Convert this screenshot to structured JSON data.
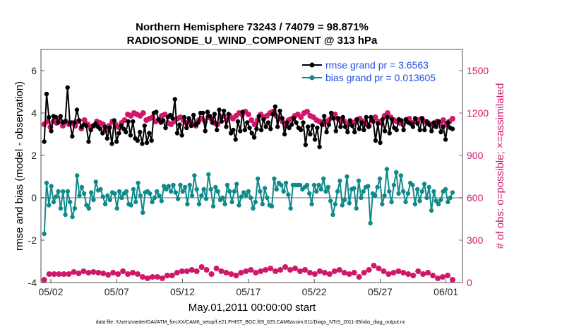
{
  "chart_data": {
    "type": "line",
    "title": "Northern Hemisphere 73243 / 74079 = 98.871%",
    "subtitle": "RADIOSONDE_U_WIND_COMPONENT @ 313 hPa",
    "xlabel": "May.01,2011 00:00:00 start",
    "ylabel_left": "rmse and bias (model - observation)",
    "ylabel_right": "# of obs: o=possible; ×=assimilated",
    "footer": "data file: /Users/raeder/DAI/ATM_forcXX/CAM6_setup/f.e21.FHIST_BGC.f09_025.CAM6assim.011/Diags_NTrS_2011-05/obs_diag_output.nc",
    "x_tick_labels": [
      "05/02",
      "05/07",
      "05/12",
      "05/17",
      "05/22",
      "05/27",
      "06/01"
    ],
    "x_tick_values": [
      1.5,
      6.5,
      11.5,
      16.5,
      21.5,
      26.5,
      31.5
    ],
    "xlim": [
      0.75,
      32.75
    ],
    "ylim_left": [
      -4,
      7
    ],
    "yticks_left": [
      "-4",
      "-2",
      "0",
      "2",
      "4",
      "6"
    ],
    "ylim_right": [
      0,
      1650
    ],
    "yticks_right": [
      "0",
      "300",
      "600",
      "900",
      "1200",
      "1500"
    ],
    "legend": {
      "placement": "top-right",
      "entries": [
        "rmse grand pr = 3.6563",
        "bias grand pr = 0.013605"
      ]
    },
    "colors": {
      "rmse": "#000000",
      "bias": "#0f8a8a",
      "obs": "#d0186a",
      "zero_line": "#b4b4b4",
      "legend_text": "#1f4fe0"
    },
    "series": [
      {
        "name": "rmse",
        "axis": "left",
        "values": [
          2.65,
          4.9,
          3.8,
          3.15,
          3.85,
          3.8,
          3.55,
          3.85,
          3.55,
          3.6,
          5.2,
          3.55,
          2.9,
          3.55,
          4.15,
          3.65,
          3.35,
          3.45,
          3.4,
          2.65,
          3.2,
          3.4,
          3.5,
          3.35,
          3.25,
          3.05,
          3.35,
          2.8,
          3.3,
          2.55,
          3.65,
          2.65,
          3.05,
          3.4,
          3.25,
          3.1,
          3.6,
          2.95,
          3.6,
          2.8,
          2.7,
          3.1,
          2.55,
          3.4,
          2.6,
          3.05,
          2.7,
          4.0,
          4.05,
          3.7,
          3.55,
          3.65,
          3.3,
          3.8,
          3.9,
          3.75,
          4.65,
          3.05,
          3.45,
          2.95,
          3.8,
          3.3,
          3.75,
          3.4,
          3.9,
          3.45,
          3.55,
          4.0,
          4.0,
          3.15,
          4.05,
          3.85,
          3.55,
          3.95,
          3.2,
          4.15,
          3.6,
          4.1,
          3.35,
          3.95,
          3.05,
          3.2,
          2.75,
          3.6,
          3.15,
          4.05,
          3.2,
          3.55,
          3.3,
          3.05,
          2.85,
          3.25,
          3.85,
          3.2,
          3.7,
          3.35,
          3.55,
          3.25,
          3.95,
          4.3,
          3.35,
          4.1,
          3.75,
          3.0,
          3.55,
          3.3,
          3.45,
          3.75,
          3.55,
          3.3,
          3.2,
          3.55,
          2.5,
          3.35,
          3.0,
          3.4,
          2.75,
          3.3,
          2.4,
          3.45,
          3.85,
          3.1,
          3.45,
          4.0,
          3.75,
          3.15,
          3.75,
          3.35,
          3.8,
          3.35,
          3.1,
          3.65,
          3.4,
          3.1,
          3.7,
          3.25,
          3.55,
          3.2,
          3.8,
          3.35,
          3.8,
          3.6,
          2.7,
          3.5,
          2.6,
          3.7,
          3.15,
          3.8,
          3.05,
          3.7,
          3.3,
          3.2,
          3.7,
          3.65,
          3.2,
          3.7,
          3.55,
          3.5,
          3.35,
          3.75,
          3.5,
          3.2,
          3.75,
          3.2,
          3.6,
          3.45,
          3.15,
          3.55,
          3.35,
          3.6,
          3.1,
          3.35,
          2.75,
          3.55,
          3.3,
          3.25
        ]
      },
      {
        "name": "bias",
        "axis": "left",
        "values": [
          -1.7,
          0.7,
          -0.35,
          0.55,
          -0.2,
          0.05,
          0.3,
          -0.5,
          0.3,
          -0.8,
          0.3,
          -0.2,
          -0.9,
          -0.5,
          1.05,
          0.1,
          0.5,
          0.2,
          -0.35,
          -0.5,
          0.25,
          -0.1,
          0.75,
          0.35,
          0.4,
          0.05,
          -0.3,
          0.1,
          -0.1,
          0.25,
          0.2,
          -0.5,
          0.3,
          0.0,
          0.2,
          0.3,
          -0.3,
          -0.35,
          0.4,
          -0.2,
          0.7,
          0.1,
          -0.7,
          0.25,
          0.3,
          0.2,
          -0.2,
          0.0,
          0.3,
          0.1,
          -0.15,
          0.55,
          0.4,
          0.55,
          0.3,
          0.6,
          0.25,
          -0.05,
          0.6,
          0.3,
          0.5,
          -0.3,
          0.6,
          0.1,
          1.05,
          0.4,
          -0.3,
          0.1,
          0.4,
          -0.05,
          1.1,
          0.4,
          -0.4,
          0.5,
          0.3,
          -0.1,
          0.0,
          -0.3,
          0.6,
          0.3,
          -0.2,
          0.3,
          0.65,
          -0.35,
          0.05,
          0.25,
          0.1,
          0.3,
          0.0,
          -0.5,
          -0.2,
          0.9,
          0.3,
          -0.3,
          0.45,
          0.0,
          -0.35,
          -0.4,
          0.9,
          0.4,
          0.7,
          0.6,
          0.3,
          0.7,
          0.15,
          -0.5,
          0.6,
          0.6,
          0.6,
          0.6,
          0.4,
          0.5,
          0.6,
          0.2,
          -0.3,
          0.6,
          0.3,
          0.6,
          0.4,
          0.9,
          0.3,
          0.5,
          -0.15,
          -0.8,
          -0.3,
          0.3,
          0.8,
          -0.35,
          -0.1,
          1.0,
          -0.25,
          0.4,
          0.45,
          -0.5,
          0.8,
          0.0,
          0.3,
          0.5,
          0.55,
          -1.2,
          0.2,
          0.1,
          0.5,
          0.9,
          -0.3,
          0.1,
          1.35,
          0.3,
          -0.2,
          0.6,
          1.2,
          0.2,
          1.05,
          0.3,
          -0.2,
          0.2,
          0.7,
          0.6,
          -0.3,
          0.4,
          -0.15,
          0.3,
          0.65,
          0.0,
          0.5,
          -0.6,
          0.3,
          -0.15,
          -0.3,
          -0.1,
          0.3,
          0.4,
          -0.2,
          0.0,
          0.25
        ]
      },
      {
        "name": "obs_assimilated",
        "axis": "right",
        "values": [
          20,
          60,
          60,
          60,
          60,
          60,
          75,
          65,
          80,
          70,
          75,
          70,
          65,
          55,
          70,
          60,
          80,
          60,
          70,
          60,
          40,
          30,
          40,
          40,
          30,
          50,
          50,
          70,
          80,
          80,
          90,
          80,
          110,
          90,
          60,
          100,
          80,
          70,
          60,
          50,
          70,
          80,
          90,
          70,
          80,
          90,
          100,
          80,
          90,
          110,
          90,
          100,
          80,
          90,
          70,
          60,
          80,
          70,
          60,
          80,
          90,
          70,
          60,
          70,
          40,
          70,
          90,
          120,
          100,
          80,
          60,
          70,
          80,
          70,
          60,
          50,
          80,
          60,
          70,
          50,
          30,
          40,
          50,
          20
        ],
        "note": "lower (observation count) series"
      },
      {
        "name": "obs_possible_top",
        "axis": "right",
        "values": [
          1120,
          1140,
          1100,
          1140,
          1130,
          1150,
          1110,
          1140,
          1120,
          1130,
          1110,
          1140,
          1090,
          1150,
          1120,
          1100,
          1110,
          1140,
          1130,
          1120,
          1080,
          1110,
          1140,
          1120,
          1100,
          1130,
          1150,
          1190,
          1180,
          1200,
          1190,
          1180,
          1200,
          1150,
          1160,
          1170,
          1140,
          1150,
          1180,
          1190,
          1130,
          1120,
          1140,
          1160,
          1170,
          1150,
          1130,
          1140,
          1120,
          1110,
          1150,
          1160,
          1140,
          1170,
          1160,
          1130,
          1120,
          1170,
          1180,
          1150,
          1180,
          1160,
          1180,
          1200,
          1190,
          1210,
          1190,
          1150,
          1120,
          1150,
          1190,
          1170,
          1180,
          1200,
          1210,
          1180,
          1160,
          1140,
          1110,
          1150,
          1160,
          1180,
          1190,
          1170,
          1200,
          1210,
          1180,
          1170,
          1150,
          1140,
          1120,
          1140,
          1150,
          1170,
          1190,
          1160,
          1150,
          1140,
          1120,
          1140,
          1130,
          1150,
          1160,
          1140,
          1120,
          1110,
          1150,
          1170,
          1140,
          1130,
          1180,
          1200,
          1170,
          1150,
          1140,
          1130,
          1120,
          1150,
          1160,
          1130,
          1140,
          1150,
          1160,
          1140,
          1130,
          1120,
          1110,
          1140,
          1130,
          1150,
          1120,
          1140,
          1160
        ],
        "note": "upper (observation count) series"
      }
    ]
  }
}
